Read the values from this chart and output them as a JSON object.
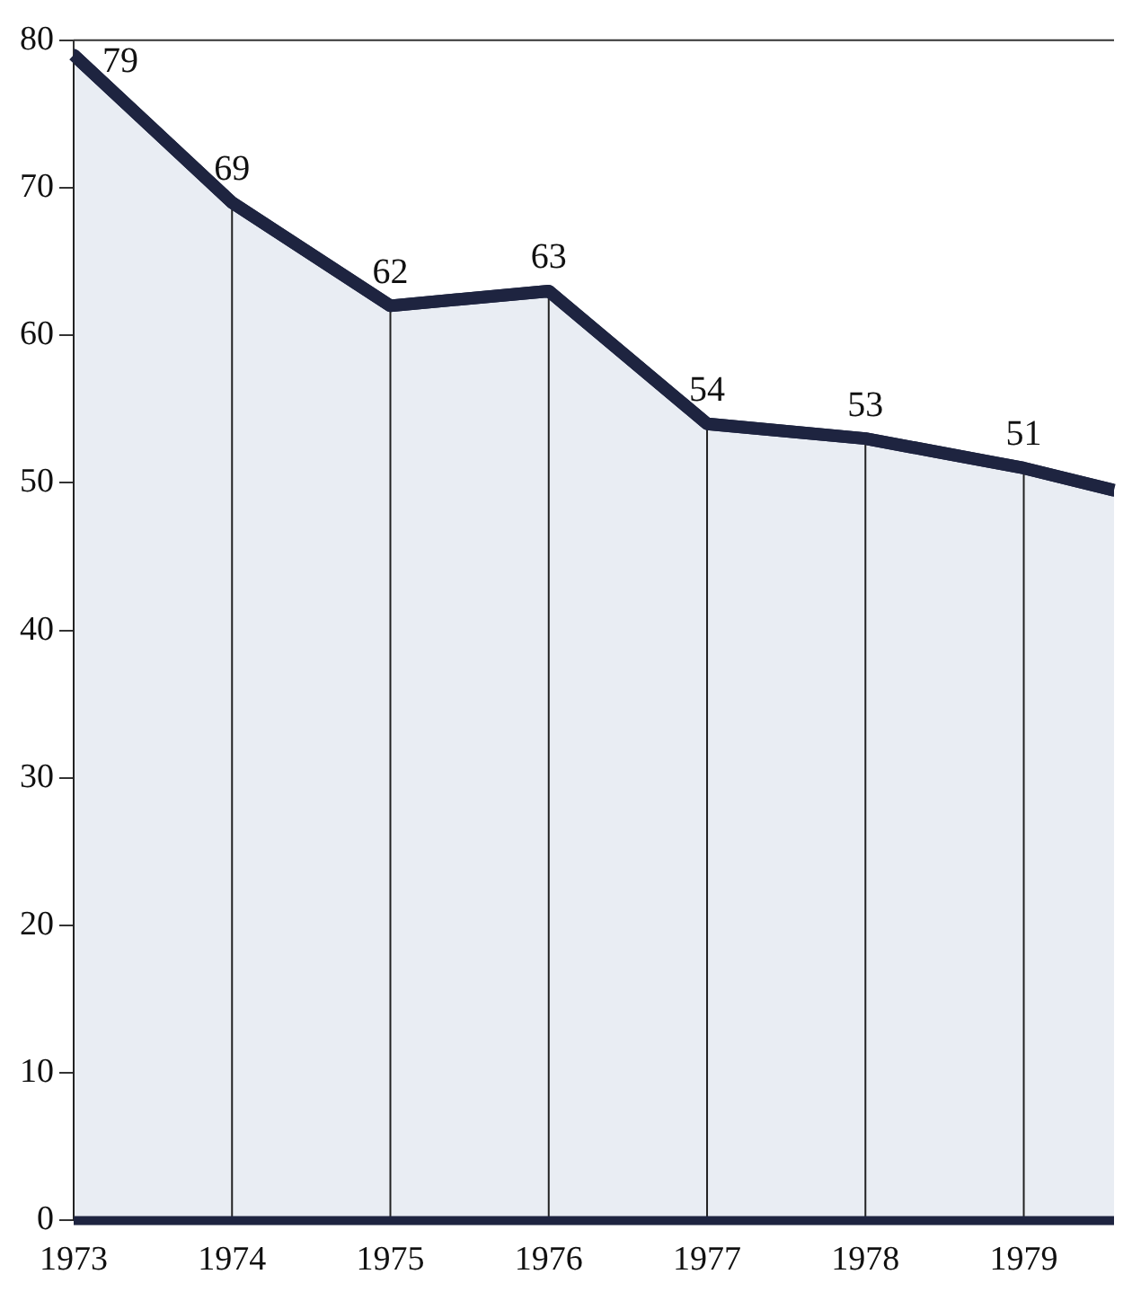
{
  "chart_data": {
    "type": "area",
    "x": [
      1973,
      1974,
      1975,
      1976,
      1977,
      1978,
      1979,
      1979.57
    ],
    "series": [
      {
        "color": "#1e2440",
        "values": [
          79,
          69,
          62,
          63,
          54,
          53,
          51,
          49.5
        ],
        "value_labels": [
          "79",
          "69",
          "62",
          "63",
          "54",
          "53",
          "51",
          null
        ]
      }
    ],
    "xlim": [
      1973,
      1979.57
    ],
    "xticks": [
      1973,
      1974,
      1975,
      1976,
      1977,
      1978,
      1979
    ],
    "ylim": [
      0,
      80
    ],
    "yticks": [
      0,
      10,
      20,
      30,
      40,
      50,
      60,
      70,
      80
    ],
    "grid": "x",
    "legend": false,
    "marker": "none",
    "line_style": "solid"
  }
}
